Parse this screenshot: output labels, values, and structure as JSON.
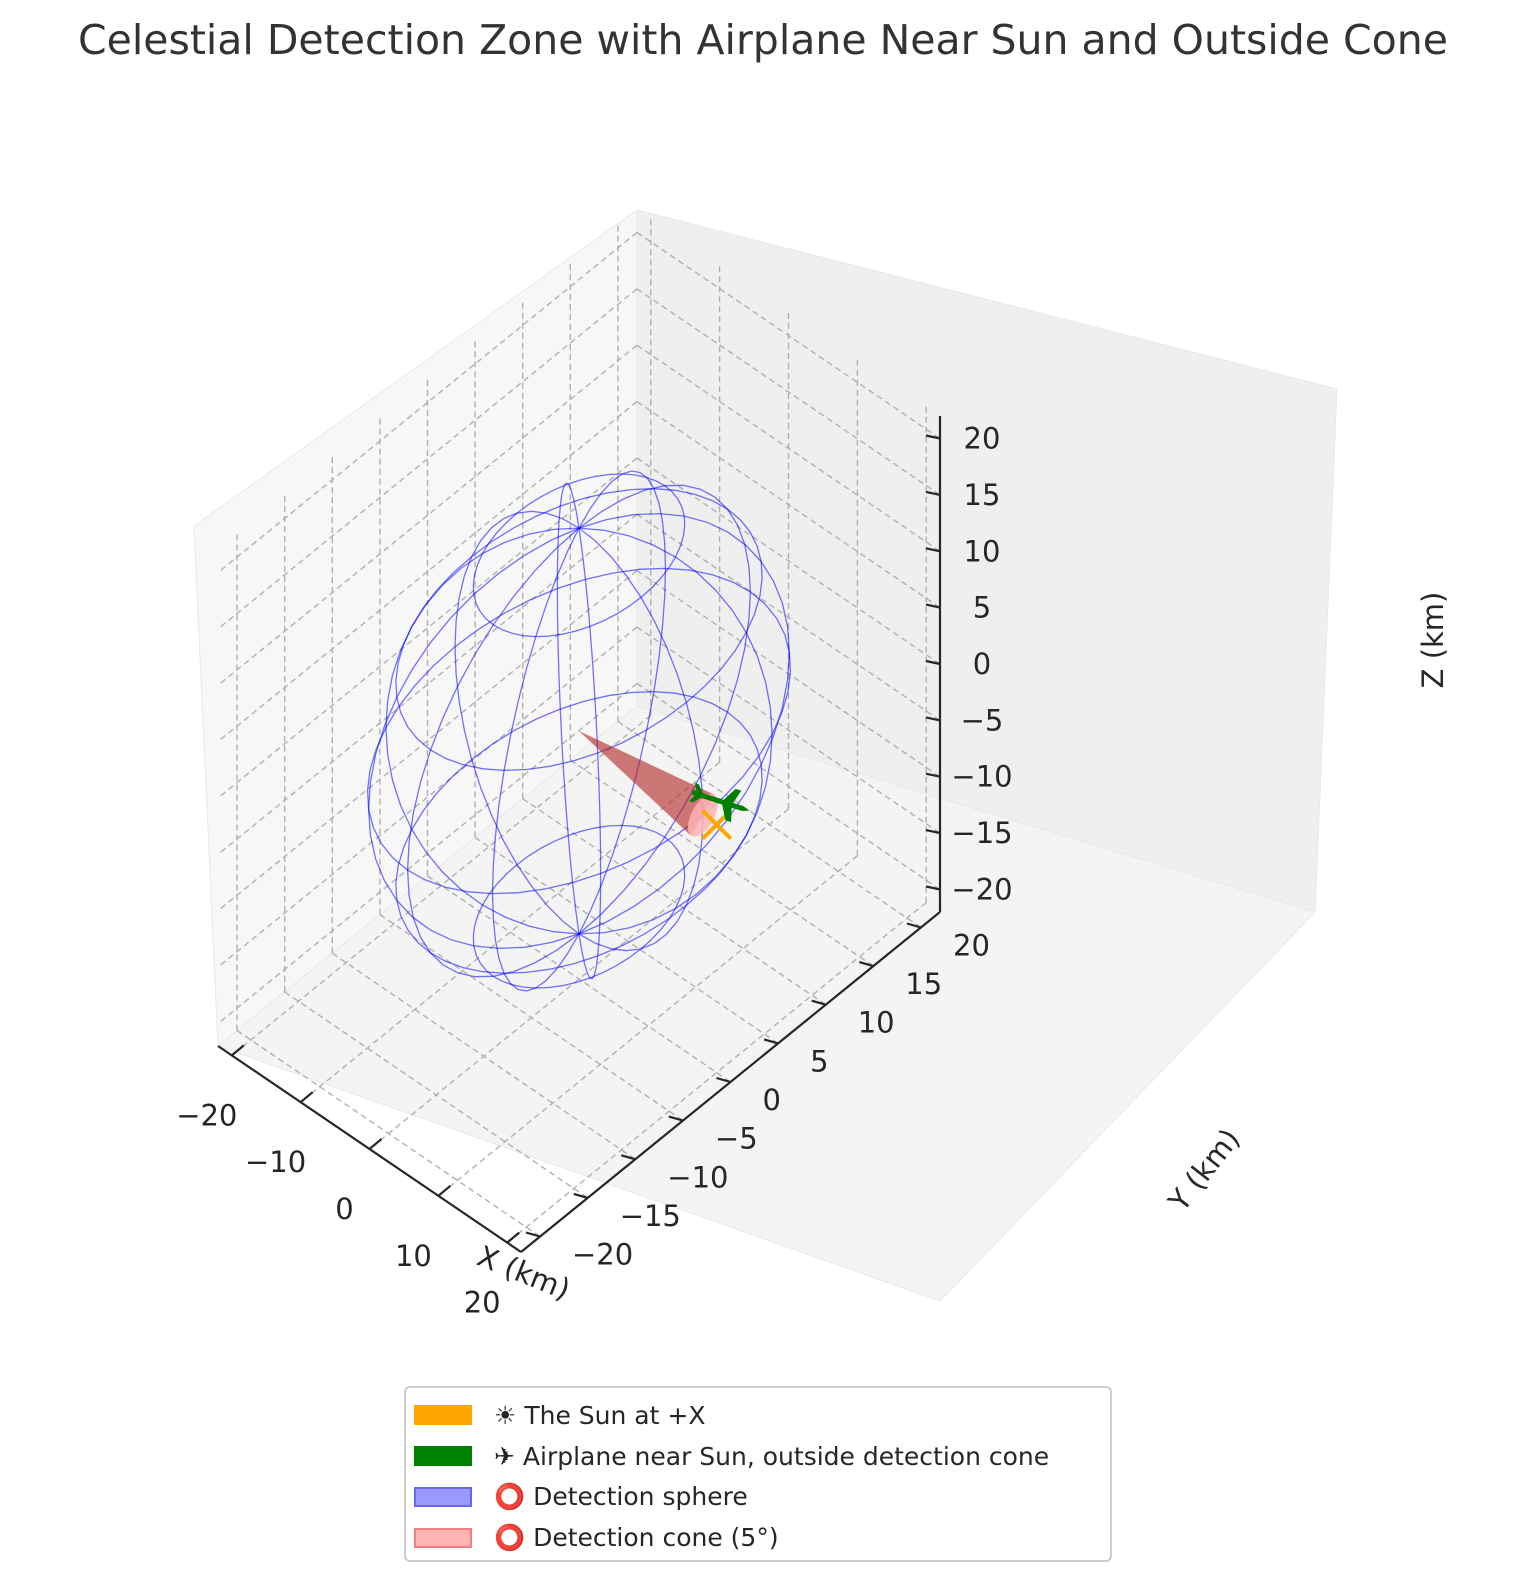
{
  "chart_data": {
    "type": "3d-scatter-surface",
    "title": "Celestial Detection Zone with Airplane Near Sun and Outside Cone",
    "xlabel": "X (km)",
    "ylabel": "Y (km)",
    "zlabel": "Z (km)",
    "xlim": [
      -22,
      22
    ],
    "ylim": [
      -22,
      22
    ],
    "zlim": [
      -22,
      22
    ],
    "x_ticks": [
      "−20",
      "−10",
      "0",
      "10",
      "20"
    ],
    "y_ticks": [
      "−20",
      "−15",
      "−10",
      "−5",
      "0",
      "5",
      "10",
      "15",
      "20"
    ],
    "z_ticks": [
      "−20",
      "−15",
      "−10",
      "−5",
      "0",
      "5",
      "10",
      "15",
      "20"
    ],
    "grid": true,
    "legend_position": "bottom-center",
    "series": [
      {
        "name": "☀ The Sun at +X",
        "color": "#ffa500",
        "marker": "x",
        "points": [
          {
            "x": 20,
            "y": 0,
            "z": 0
          }
        ]
      },
      {
        "name": "✈ Airplane near Sun, outside detection cone",
        "color": "#008000",
        "marker": "airplane",
        "points": [
          {
            "x": 19,
            "y": 1,
            "z": 1
          }
        ]
      },
      {
        "name": "⭕ Detection sphere",
        "color": "#0000ff",
        "type": "wireframe-sphere",
        "center": [
          0,
          0,
          0
        ],
        "radius": 18
      },
      {
        "name": "⭕ Detection cone (5°)",
        "color": "#ff0000",
        "type": "cone",
        "apex": [
          0,
          0,
          0
        ],
        "axis": "+X",
        "length": 18,
        "half_angle_deg": 5
      }
    ]
  },
  "legend": {
    "items": [
      {
        "label": "☀ The Sun at +X",
        "fill": "#ffa500",
        "edge": "#ffa500"
      },
      {
        "label": "✈ Airplane near Sun, outside detection cone",
        "fill": "#008000",
        "edge": "#008000"
      },
      {
        "label": "⭕ Detection sphere",
        "fill": "#9999ff",
        "edge": "#6666ee"
      },
      {
        "label": "⭕ Detection cone (5°)",
        "fill": "#ffb3b3",
        "edge": "#f08080"
      }
    ]
  }
}
